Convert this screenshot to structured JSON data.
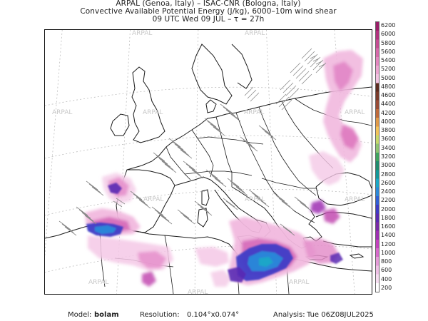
{
  "header": {
    "line1": "ARPAL (Genoa, Italy)  –  ISAC-CNR (Bologna, Italy)",
    "line2": "Convective Available Potential Energy (J/kg), 6000–10m wind shear",
    "line3": "09 UTC Wed 09 JUL  –  τ = 27h"
  },
  "colorbar": {
    "labels": [
      "6200",
      "6000",
      "5800",
      "5600",
      "5400",
      "5200",
      "5000",
      "4800",
      "4600",
      "4400",
      "4200",
      "4000",
      "3800",
      "3600",
      "3400",
      "3200",
      "3000",
      "2800",
      "2600",
      "2400",
      "2200",
      "2000",
      "1800",
      "1600",
      "1400",
      "1200",
      "1000",
      "800",
      "600",
      "400",
      "200"
    ],
    "colors": [
      "#9c1e6a",
      "#b3317f",
      "#c64d94",
      "#d76aab",
      "#e487c0",
      "#eda6d2",
      "#f3c3e2",
      "#5d2c1f",
      "#7a3a2a",
      "#9a4b35",
      "#c06a3a",
      "#e19a48",
      "#f3c35a",
      "#c8d86a",
      "#8fc471",
      "#3fa55f",
      "#1f8d6e",
      "#12999a",
      "#1aa8c7",
      "#2b89d9",
      "#2f5fd6",
      "#3e3bc6",
      "#5a2ab3",
      "#7a2aa8",
      "#9e2fb3",
      "#c442bf",
      "#d76bcc",
      "#e59bd8",
      "#efc0e6",
      "#f6ddf1",
      "#ffffff"
    ]
  },
  "watermark": {
    "text": "ARPAL"
  },
  "footer": {
    "model_label": "Model:",
    "model_value": "bolam",
    "resolution_label": "Resolution:",
    "resolution_value": "0.104°x0.074°",
    "analysis_label": "Analysis:",
    "analysis_value": "Tue 06Z08JUL2025"
  }
}
